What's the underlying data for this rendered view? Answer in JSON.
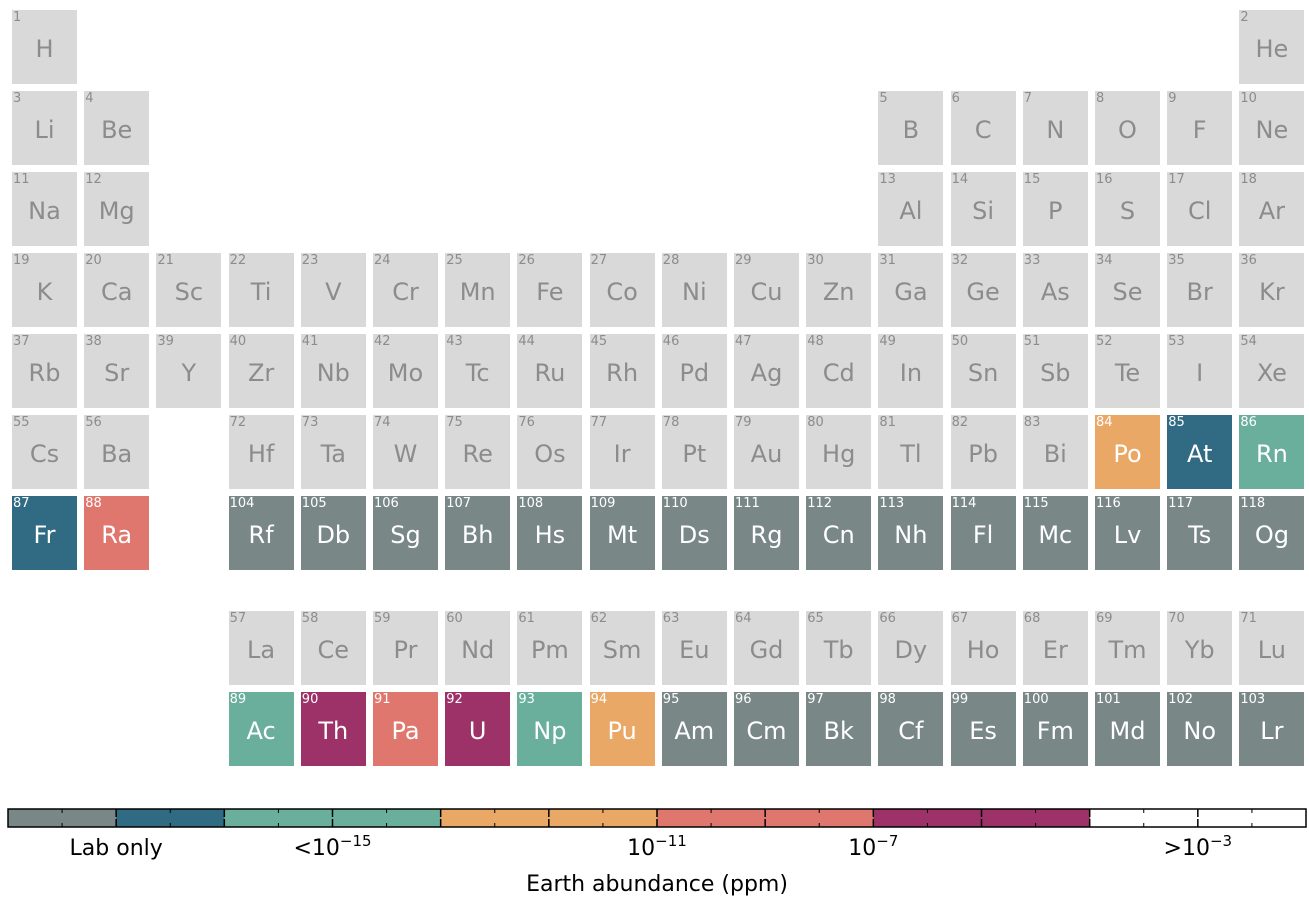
{
  "colors": {
    "none": "#d9d9d9",
    "none_text": "#8c8c8c",
    "lab": "#7a8787",
    "lt15": "#316a83",
    "e15_11": "#6aaf9c",
    "e11_7": "#eaa867",
    "e7_3": "#e0776e",
    "gt3": "#9c3268",
    "colored_text": "#ffffff"
  },
  "chart_data": {
    "type": "table",
    "description_kind": "periodic-table-heatmap",
    "categories_order": [
      "lab",
      "lt15",
      "e15_11",
      "e11_7",
      "e7_3",
      "gt3"
    ],
    "elements": [
      {
        "z": 1,
        "symbol": "H",
        "row": 1,
        "col": 1,
        "cat": "none"
      },
      {
        "z": 2,
        "symbol": "He",
        "row": 1,
        "col": 18,
        "cat": "none"
      },
      {
        "z": 3,
        "symbol": "Li",
        "row": 2,
        "col": 1,
        "cat": "none"
      },
      {
        "z": 4,
        "symbol": "Be",
        "row": 2,
        "col": 2,
        "cat": "none"
      },
      {
        "z": 5,
        "symbol": "B",
        "row": 2,
        "col": 13,
        "cat": "none"
      },
      {
        "z": 6,
        "symbol": "C",
        "row": 2,
        "col": 14,
        "cat": "none"
      },
      {
        "z": 7,
        "symbol": "N",
        "row": 2,
        "col": 15,
        "cat": "none"
      },
      {
        "z": 8,
        "symbol": "O",
        "row": 2,
        "col": 16,
        "cat": "none"
      },
      {
        "z": 9,
        "symbol": "F",
        "row": 2,
        "col": 17,
        "cat": "none"
      },
      {
        "z": 10,
        "symbol": "Ne",
        "row": 2,
        "col": 18,
        "cat": "none"
      },
      {
        "z": 11,
        "symbol": "Na",
        "row": 3,
        "col": 1,
        "cat": "none"
      },
      {
        "z": 12,
        "symbol": "Mg",
        "row": 3,
        "col": 2,
        "cat": "none"
      },
      {
        "z": 13,
        "symbol": "Al",
        "row": 3,
        "col": 13,
        "cat": "none"
      },
      {
        "z": 14,
        "symbol": "Si",
        "row": 3,
        "col": 14,
        "cat": "none"
      },
      {
        "z": 15,
        "symbol": "P",
        "row": 3,
        "col": 15,
        "cat": "none"
      },
      {
        "z": 16,
        "symbol": "S",
        "row": 3,
        "col": 16,
        "cat": "none"
      },
      {
        "z": 17,
        "symbol": "Cl",
        "row": 3,
        "col": 17,
        "cat": "none"
      },
      {
        "z": 18,
        "symbol": "Ar",
        "row": 3,
        "col": 18,
        "cat": "none"
      },
      {
        "z": 19,
        "symbol": "K",
        "row": 4,
        "col": 1,
        "cat": "none"
      },
      {
        "z": 20,
        "symbol": "Ca",
        "row": 4,
        "col": 2,
        "cat": "none"
      },
      {
        "z": 21,
        "symbol": "Sc",
        "row": 4,
        "col": 3,
        "cat": "none"
      },
      {
        "z": 22,
        "symbol": "Ti",
        "row": 4,
        "col": 4,
        "cat": "none"
      },
      {
        "z": 23,
        "symbol": "V",
        "row": 4,
        "col": 5,
        "cat": "none"
      },
      {
        "z": 24,
        "symbol": "Cr",
        "row": 4,
        "col": 6,
        "cat": "none"
      },
      {
        "z": 25,
        "symbol": "Mn",
        "row": 4,
        "col": 7,
        "cat": "none"
      },
      {
        "z": 26,
        "symbol": "Fe",
        "row": 4,
        "col": 8,
        "cat": "none"
      },
      {
        "z": 27,
        "symbol": "Co",
        "row": 4,
        "col": 9,
        "cat": "none"
      },
      {
        "z": 28,
        "symbol": "Ni",
        "row": 4,
        "col": 10,
        "cat": "none"
      },
      {
        "z": 29,
        "symbol": "Cu",
        "row": 4,
        "col": 11,
        "cat": "none"
      },
      {
        "z": 30,
        "symbol": "Zn",
        "row": 4,
        "col": 12,
        "cat": "none"
      },
      {
        "z": 31,
        "symbol": "Ga",
        "row": 4,
        "col": 13,
        "cat": "none"
      },
      {
        "z": 32,
        "symbol": "Ge",
        "row": 4,
        "col": 14,
        "cat": "none"
      },
      {
        "z": 33,
        "symbol": "As",
        "row": 4,
        "col": 15,
        "cat": "none"
      },
      {
        "z": 34,
        "symbol": "Se",
        "row": 4,
        "col": 16,
        "cat": "none"
      },
      {
        "z": 35,
        "symbol": "Br",
        "row": 4,
        "col": 17,
        "cat": "none"
      },
      {
        "z": 36,
        "symbol": "Kr",
        "row": 4,
        "col": 18,
        "cat": "none"
      },
      {
        "z": 37,
        "symbol": "Rb",
        "row": 5,
        "col": 1,
        "cat": "none"
      },
      {
        "z": 38,
        "symbol": "Sr",
        "row": 5,
        "col": 2,
        "cat": "none"
      },
      {
        "z": 39,
        "symbol": "Y",
        "row": 5,
        "col": 3,
        "cat": "none"
      },
      {
        "z": 40,
        "symbol": "Zr",
        "row": 5,
        "col": 4,
        "cat": "none"
      },
      {
        "z": 41,
        "symbol": "Nb",
        "row": 5,
        "col": 5,
        "cat": "none"
      },
      {
        "z": 42,
        "symbol": "Mo",
        "row": 5,
        "col": 6,
        "cat": "none"
      },
      {
        "z": 43,
        "symbol": "Tc",
        "row": 5,
        "col": 7,
        "cat": "none"
      },
      {
        "z": 44,
        "symbol": "Ru",
        "row": 5,
        "col": 8,
        "cat": "none"
      },
      {
        "z": 45,
        "symbol": "Rh",
        "row": 5,
        "col": 9,
        "cat": "none"
      },
      {
        "z": 46,
        "symbol": "Pd",
        "row": 5,
        "col": 10,
        "cat": "none"
      },
      {
        "z": 47,
        "symbol": "Ag",
        "row": 5,
        "col": 11,
        "cat": "none"
      },
      {
        "z": 48,
        "symbol": "Cd",
        "row": 5,
        "col": 12,
        "cat": "none"
      },
      {
        "z": 49,
        "symbol": "In",
        "row": 5,
        "col": 13,
        "cat": "none"
      },
      {
        "z": 50,
        "symbol": "Sn",
        "row": 5,
        "col": 14,
        "cat": "none"
      },
      {
        "z": 51,
        "symbol": "Sb",
        "row": 5,
        "col": 15,
        "cat": "none"
      },
      {
        "z": 52,
        "symbol": "Te",
        "row": 5,
        "col": 16,
        "cat": "none"
      },
      {
        "z": 53,
        "symbol": "I",
        "row": 5,
        "col": 17,
        "cat": "none"
      },
      {
        "z": 54,
        "symbol": "Xe",
        "row": 5,
        "col": 18,
        "cat": "none"
      },
      {
        "z": 55,
        "symbol": "Cs",
        "row": 6,
        "col": 1,
        "cat": "none"
      },
      {
        "z": 56,
        "symbol": "Ba",
        "row": 6,
        "col": 2,
        "cat": "none"
      },
      {
        "z": 72,
        "symbol": "Hf",
        "row": 6,
        "col": 4,
        "cat": "none"
      },
      {
        "z": 73,
        "symbol": "Ta",
        "row": 6,
        "col": 5,
        "cat": "none"
      },
      {
        "z": 74,
        "symbol": "W",
        "row": 6,
        "col": 6,
        "cat": "none"
      },
      {
        "z": 75,
        "symbol": "Re",
        "row": 6,
        "col": 7,
        "cat": "none"
      },
      {
        "z": 76,
        "symbol": "Os",
        "row": 6,
        "col": 8,
        "cat": "none"
      },
      {
        "z": 77,
        "symbol": "Ir",
        "row": 6,
        "col": 9,
        "cat": "none"
      },
      {
        "z": 78,
        "symbol": "Pt",
        "row": 6,
        "col": 10,
        "cat": "none"
      },
      {
        "z": 79,
        "symbol": "Au",
        "row": 6,
        "col": 11,
        "cat": "none"
      },
      {
        "z": 80,
        "symbol": "Hg",
        "row": 6,
        "col": 12,
        "cat": "none"
      },
      {
        "z": 81,
        "symbol": "Tl",
        "row": 6,
        "col": 13,
        "cat": "none"
      },
      {
        "z": 82,
        "symbol": "Pb",
        "row": 6,
        "col": 14,
        "cat": "none"
      },
      {
        "z": 83,
        "symbol": "Bi",
        "row": 6,
        "col": 15,
        "cat": "none"
      },
      {
        "z": 84,
        "symbol": "Po",
        "row": 6,
        "col": 16,
        "cat": "e11_7"
      },
      {
        "z": 85,
        "symbol": "At",
        "row": 6,
        "col": 17,
        "cat": "lt15"
      },
      {
        "z": 86,
        "symbol": "Rn",
        "row": 6,
        "col": 18,
        "cat": "e15_11"
      },
      {
        "z": 87,
        "symbol": "Fr",
        "row": 7,
        "col": 1,
        "cat": "lt15"
      },
      {
        "z": 88,
        "symbol": "Ra",
        "row": 7,
        "col": 2,
        "cat": "e7_3"
      },
      {
        "z": 104,
        "symbol": "Rf",
        "row": 7,
        "col": 4,
        "cat": "lab"
      },
      {
        "z": 105,
        "symbol": "Db",
        "row": 7,
        "col": 5,
        "cat": "lab"
      },
      {
        "z": 106,
        "symbol": "Sg",
        "row": 7,
        "col": 6,
        "cat": "lab"
      },
      {
        "z": 107,
        "symbol": "Bh",
        "row": 7,
        "col": 7,
        "cat": "lab"
      },
      {
        "z": 108,
        "symbol": "Hs",
        "row": 7,
        "col": 8,
        "cat": "lab"
      },
      {
        "z": 109,
        "symbol": "Mt",
        "row": 7,
        "col": 9,
        "cat": "lab"
      },
      {
        "z": 110,
        "symbol": "Ds",
        "row": 7,
        "col": 10,
        "cat": "lab"
      },
      {
        "z": 111,
        "symbol": "Rg",
        "row": 7,
        "col": 11,
        "cat": "lab"
      },
      {
        "z": 112,
        "symbol": "Cn",
        "row": 7,
        "col": 12,
        "cat": "lab"
      },
      {
        "z": 113,
        "symbol": "Nh",
        "row": 7,
        "col": 13,
        "cat": "lab"
      },
      {
        "z": 114,
        "symbol": "Fl",
        "row": 7,
        "col": 14,
        "cat": "lab"
      },
      {
        "z": 115,
        "symbol": "Mc",
        "row": 7,
        "col": 15,
        "cat": "lab"
      },
      {
        "z": 116,
        "symbol": "Lv",
        "row": 7,
        "col": 16,
        "cat": "lab"
      },
      {
        "z": 117,
        "symbol": "Ts",
        "row": 7,
        "col": 17,
        "cat": "lab"
      },
      {
        "z": 118,
        "symbol": "Og",
        "row": 7,
        "col": 18,
        "cat": "lab"
      },
      {
        "z": 57,
        "symbol": "La",
        "row": 8,
        "col": 4,
        "cat": "none"
      },
      {
        "z": 58,
        "symbol": "Ce",
        "row": 8,
        "col": 5,
        "cat": "none"
      },
      {
        "z": 59,
        "symbol": "Pr",
        "row": 8,
        "col": 6,
        "cat": "none"
      },
      {
        "z": 60,
        "symbol": "Nd",
        "row": 8,
        "col": 7,
        "cat": "none"
      },
      {
        "z": 61,
        "symbol": "Pm",
        "row": 8,
        "col": 8,
        "cat": "none"
      },
      {
        "z": 62,
        "symbol": "Sm",
        "row": 8,
        "col": 9,
        "cat": "none"
      },
      {
        "z": 63,
        "symbol": "Eu",
        "row": 8,
        "col": 10,
        "cat": "none"
      },
      {
        "z": 64,
        "symbol": "Gd",
        "row": 8,
        "col": 11,
        "cat": "none"
      },
      {
        "z": 65,
        "symbol": "Tb",
        "row": 8,
        "col": 12,
        "cat": "none"
      },
      {
        "z": 66,
        "symbol": "Dy",
        "row": 8,
        "col": 13,
        "cat": "none"
      },
      {
        "z": 67,
        "symbol": "Ho",
        "row": 8,
        "col": 14,
        "cat": "none"
      },
      {
        "z": 68,
        "symbol": "Er",
        "row": 8,
        "col": 15,
        "cat": "none"
      },
      {
        "z": 69,
        "symbol": "Tm",
        "row": 8,
        "col": 16,
        "cat": "none"
      },
      {
        "z": 70,
        "symbol": "Yb",
        "row": 8,
        "col": 17,
        "cat": "none"
      },
      {
        "z": 71,
        "symbol": "Lu",
        "row": 8,
        "col": 18,
        "cat": "none"
      },
      {
        "z": 89,
        "symbol": "Ac",
        "row": 9,
        "col": 4,
        "cat": "e15_11"
      },
      {
        "z": 90,
        "symbol": "Th",
        "row": 9,
        "col": 5,
        "cat": "gt3"
      },
      {
        "z": 91,
        "symbol": "Pa",
        "row": 9,
        "col": 6,
        "cat": "e7_3"
      },
      {
        "z": 92,
        "symbol": "U",
        "row": 9,
        "col": 7,
        "cat": "gt3"
      },
      {
        "z": 93,
        "symbol": "Np",
        "row": 9,
        "col": 8,
        "cat": "e15_11"
      },
      {
        "z": 94,
        "symbol": "Pu",
        "row": 9,
        "col": 9,
        "cat": "e11_7"
      },
      {
        "z": 95,
        "symbol": "Am",
        "row": 9,
        "col": 10,
        "cat": "lab"
      },
      {
        "z": 96,
        "symbol": "Cm",
        "row": 9,
        "col": 11,
        "cat": "lab"
      },
      {
        "z": 97,
        "symbol": "Bk",
        "row": 9,
        "col": 12,
        "cat": "lab"
      },
      {
        "z": 98,
        "symbol": "Cf",
        "row": 9,
        "col": 13,
        "cat": "lab"
      },
      {
        "z": 99,
        "symbol": "Es",
        "row": 9,
        "col": 14,
        "cat": "lab"
      },
      {
        "z": 100,
        "symbol": "Fm",
        "row": 9,
        "col": 15,
        "cat": "lab"
      },
      {
        "z": 101,
        "symbol": "Md",
        "row": 9,
        "col": 16,
        "cat": "lab"
      },
      {
        "z": 102,
        "symbol": "No",
        "row": 9,
        "col": 17,
        "cat": "lab"
      },
      {
        "z": 103,
        "symbol": "Lr",
        "row": 9,
        "col": 18,
        "cat": "lab"
      }
    ],
    "colorbar": {
      "segments": [
        {
          "cat": "lab",
          "units": 2
        },
        {
          "cat": "lt15",
          "units": 2
        },
        {
          "cat": "e15_11",
          "units": 4
        },
        {
          "cat": "e11_7",
          "units": 4
        },
        {
          "cat": "e7_3",
          "units": 4
        },
        {
          "cat": "gt3",
          "units": 4
        }
      ],
      "total_units": 24,
      "labels": [
        {
          "text": "Lab only",
          "at_unit": 2
        },
        {
          "base": "<10",
          "exp": "−15",
          "at_unit": 6
        },
        {
          "base": "10",
          "exp": "−11",
          "at_unit": 12
        },
        {
          "base": "10",
          "exp": "−7",
          "at_unit": 16
        },
        {
          "base": ">10",
          "exp": "−3",
          "at_unit": 22
        }
      ],
      "xlabel": "Earth abundance (ppm)"
    }
  }
}
